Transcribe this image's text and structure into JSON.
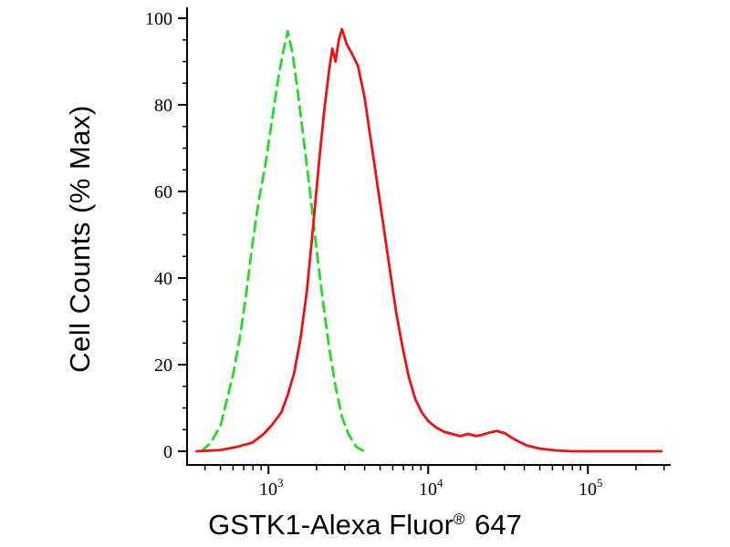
{
  "chart_data": {
    "type": "line",
    "title": "",
    "xlabel": "GSTK1-Alexa Fluor® 647",
    "xlabel_parts": {
      "main": "GSTK1-Alexa Fluor",
      "sup": "®",
      "tail": "647"
    },
    "ylabel": "Cell Counts (% Max)",
    "x_scale": "log",
    "x_range_log10": [
      2.49,
      5.49
    ],
    "ylim": [
      0,
      100
    ],
    "y_ticks": [
      0,
      20,
      40,
      60,
      80,
      100
    ],
    "y_minor_tick_step": 5,
    "x_major_ticks": [
      1000,
      10000,
      100000
    ],
    "grid": "off",
    "legend": "none",
    "background_color": "#ffffff",
    "axis_color": "#000000",
    "series": [
      {
        "name": "green-dashed-curve",
        "style": "dashed",
        "color": "#22dd22",
        "dash": "11 7",
        "points_log10x_y": [
          [
            2.58,
            0
          ],
          [
            2.64,
            2
          ],
          [
            2.7,
            6
          ],
          [
            2.74,
            12
          ],
          [
            2.78,
            18
          ],
          [
            2.82,
            26
          ],
          [
            2.86,
            36
          ],
          [
            2.9,
            48
          ],
          [
            2.94,
            58
          ],
          [
            2.98,
            66
          ],
          [
            3.02,
            76
          ],
          [
            3.06,
            86
          ],
          [
            3.09,
            92
          ],
          [
            3.12,
            97
          ],
          [
            3.15,
            92
          ],
          [
            3.18,
            84
          ],
          [
            3.22,
            72
          ],
          [
            3.26,
            60
          ],
          [
            3.3,
            47
          ],
          [
            3.34,
            35
          ],
          [
            3.38,
            24
          ],
          [
            3.42,
            15
          ],
          [
            3.46,
            8
          ],
          [
            3.5,
            4
          ],
          [
            3.55,
            1
          ],
          [
            3.6,
            0
          ]
        ]
      },
      {
        "name": "red-solid-curve",
        "style": "solid",
        "color": "#ee1111",
        "dash": "",
        "points_log10x_y": [
          [
            2.55,
            0
          ],
          [
            2.7,
            0.3
          ],
          [
            2.8,
            1
          ],
          [
            2.9,
            2
          ],
          [
            2.97,
            4
          ],
          [
            3.02,
            6
          ],
          [
            3.08,
            9
          ],
          [
            3.12,
            13
          ],
          [
            3.16,
            18
          ],
          [
            3.2,
            26
          ],
          [
            3.24,
            37
          ],
          [
            3.28,
            52
          ],
          [
            3.32,
            68
          ],
          [
            3.35,
            79
          ],
          [
            3.38,
            88
          ],
          [
            3.4,
            93
          ],
          [
            3.42,
            90
          ],
          [
            3.44,
            95
          ],
          [
            3.46,
            97.5
          ],
          [
            3.49,
            94
          ],
          [
            3.52,
            92
          ],
          [
            3.56,
            89
          ],
          [
            3.6,
            82
          ],
          [
            3.64,
            72
          ],
          [
            3.68,
            62
          ],
          [
            3.72,
            52
          ],
          [
            3.76,
            42
          ],
          [
            3.8,
            32
          ],
          [
            3.84,
            24
          ],
          [
            3.88,
            17
          ],
          [
            3.92,
            12
          ],
          [
            3.96,
            9
          ],
          [
            4.0,
            7
          ],
          [
            4.05,
            5.5
          ],
          [
            4.1,
            4.5
          ],
          [
            4.15,
            4
          ],
          [
            4.2,
            3.5
          ],
          [
            4.25,
            4
          ],
          [
            4.3,
            3.5
          ],
          [
            4.34,
            3.8
          ],
          [
            4.38,
            4.3
          ],
          [
            4.43,
            4.7
          ],
          [
            4.48,
            4.2
          ],
          [
            4.52,
            3.2
          ],
          [
            4.57,
            2.2
          ],
          [
            4.62,
            1.3
          ],
          [
            4.7,
            0.6
          ],
          [
            4.8,
            0.2
          ],
          [
            4.9,
            0
          ],
          [
            5.2,
            0
          ],
          [
            5.46,
            0
          ]
        ]
      }
    ]
  }
}
